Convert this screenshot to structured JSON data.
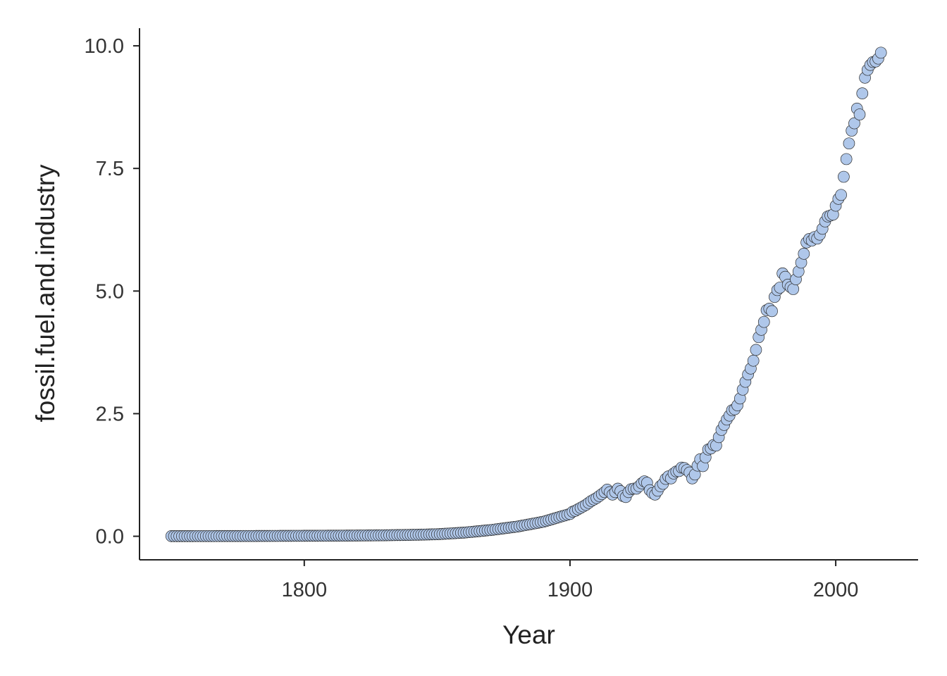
{
  "chart_data": {
    "type": "scatter",
    "title": "",
    "xlabel": "Year",
    "ylabel": "fossil.fuel.and.industry",
    "xlim": [
      1738,
      2031
    ],
    "ylim": [
      -0.48,
      10.36
    ],
    "xticks": [
      1800,
      1900,
      2000
    ],
    "yticks": [
      0.0,
      2.5,
      5.0,
      7.5,
      10.0
    ],
    "xtick_labels": [
      "1800",
      "1900",
      "2000"
    ],
    "ytick_labels": [
      "0.0",
      "2.5",
      "5.0",
      "7.5",
      "10.0"
    ],
    "grid": false,
    "legend": "none",
    "point_color": "#afc7ea",
    "point_edge_color": "#2a2a2a",
    "series": [
      {
        "x": [
          1750,
          1751,
          1752,
          1753,
          1754,
          1755,
          1756,
          1757,
          1758,
          1759,
          1760,
          1761,
          1762,
          1763,
          1764,
          1765,
          1766,
          1767,
          1768,
          1769,
          1770,
          1771,
          1772,
          1773,
          1774,
          1775,
          1776,
          1777,
          1778,
          1779,
          1780,
          1781,
          1782,
          1783,
          1784,
          1785,
          1786,
          1787,
          1788,
          1789,
          1790,
          1791,
          1792,
          1793,
          1794,
          1795,
          1796,
          1797,
          1798,
          1799,
          1800,
          1801,
          1802,
          1803,
          1804,
          1805,
          1806,
          1807,
          1808,
          1809,
          1810,
          1811,
          1812,
          1813,
          1814,
          1815,
          1816,
          1817,
          1818,
          1819,
          1820,
          1821,
          1822,
          1823,
          1824,
          1825,
          1826,
          1827,
          1828,
          1829,
          1830,
          1831,
          1832,
          1833,
          1834,
          1835,
          1836,
          1837,
          1838,
          1839,
          1840,
          1841,
          1842,
          1843,
          1844,
          1845,
          1846,
          1847,
          1848,
          1849,
          1850,
          1851,
          1852,
          1853,
          1854,
          1855,
          1856,
          1857,
          1858,
          1859,
          1860,
          1861,
          1862,
          1863,
          1864,
          1865,
          1866,
          1867,
          1868,
          1869,
          1870,
          1871,
          1872,
          1873,
          1874,
          1875,
          1876,
          1877,
          1878,
          1879,
          1880,
          1881,
          1882,
          1883,
          1884,
          1885,
          1886,
          1887,
          1888,
          1889,
          1890,
          1891,
          1892,
          1893,
          1894,
          1895,
          1896,
          1897,
          1898,
          1899,
          1900,
          1901,
          1902,
          1903,
          1904,
          1905,
          1906,
          1907,
          1908,
          1909,
          1910,
          1911,
          1912,
          1913,
          1914,
          1915,
          1916,
          1917,
          1918,
          1919,
          1920,
          1921,
          1922,
          1923,
          1924,
          1925,
          1926,
          1927,
          1928,
          1929,
          1930,
          1931,
          1932,
          1933,
          1934,
          1935,
          1936,
          1937,
          1938,
          1939,
          1940,
          1941,
          1942,
          1943,
          1944,
          1945,
          1946,
          1947,
          1948,
          1949,
          1950,
          1951,
          1952,
          1953,
          1954,
          1955,
          1956,
          1957,
          1958,
          1959,
          1960,
          1961,
          1962,
          1963,
          1964,
          1965,
          1966,
          1967,
          1968,
          1969,
          1970,
          1971,
          1972,
          1973,
          1974,
          1975,
          1976,
          1977,
          1978,
          1979,
          1980,
          1981,
          1982,
          1983,
          1984,
          1985,
          1986,
          1987,
          1988,
          1989,
          1990,
          1991,
          1992,
          1993,
          1994,
          1995,
          1996,
          1997,
          1998,
          1999,
          2000,
          2001,
          2002,
          2003,
          2004,
          2005,
          2006,
          2007,
          2008,
          2009,
          2010,
          2011,
          2012,
          2013,
          2014,
          2015,
          2016,
          2017
        ],
        "y": [
          0.003,
          0.003,
          0.003,
          0.003,
          0.003,
          0.003,
          0.0031,
          0.0032,
          0.0033,
          0.0034,
          0.0035,
          0.0035,
          0.0036,
          0.0037,
          0.0038,
          0.0039,
          0.004,
          0.0041,
          0.0042,
          0.0043,
          0.0044,
          0.0045,
          0.0046,
          0.0047,
          0.0048,
          0.0049,
          0.005,
          0.0051,
          0.0052,
          0.0053,
          0.0055,
          0.0057,
          0.0059,
          0.0061,
          0.0063,
          0.0065,
          0.0067,
          0.0069,
          0.0071,
          0.0073,
          0.0075,
          0.0077,
          0.0079,
          0.0081,
          0.0083,
          0.0085,
          0.0087,
          0.0089,
          0.0091,
          0.0093,
          0.0095,
          0.0097,
          0.0099,
          0.0101,
          0.0103,
          0.0105,
          0.0107,
          0.0109,
          0.0111,
          0.0113,
          0.0115,
          0.0117,
          0.0119,
          0.0121,
          0.0123,
          0.0125,
          0.013,
          0.0135,
          0.014,
          0.0145,
          0.015,
          0.0155,
          0.016,
          0.0165,
          0.017,
          0.0175,
          0.018,
          0.0185,
          0.019,
          0.0195,
          0.02,
          0.0208,
          0.0216,
          0.0224,
          0.0232,
          0.024,
          0.0248,
          0.0256,
          0.0264,
          0.0272,
          0.028,
          0.0293,
          0.0306,
          0.0319,
          0.0332,
          0.0345,
          0.0358,
          0.0371,
          0.0384,
          0.0397,
          0.041,
          0.0443,
          0.0476,
          0.0509,
          0.0542,
          0.0575,
          0.0608,
          0.0641,
          0.0674,
          0.0707,
          0.074,
          0.0792,
          0.0844,
          0.0896,
          0.0948,
          0.1,
          0.1052,
          0.1104,
          0.1156,
          0.1208,
          0.126,
          0.133,
          0.14,
          0.147,
          0.154,
          0.161,
          0.168,
          0.175,
          0.182,
          0.189,
          0.196,
          0.206,
          0.216,
          0.226,
          0.236,
          0.246,
          0.256,
          0.266,
          0.276,
          0.286,
          0.296,
          0.312,
          0.328,
          0.344,
          0.36,
          0.376,
          0.392,
          0.408,
          0.424,
          0.44,
          0.456,
          0.5,
          0.52,
          0.55,
          0.58,
          0.61,
          0.64,
          0.68,
          0.72,
          0.75,
          0.78,
          0.82,
          0.86,
          0.9,
          0.95,
          0.9,
          0.85,
          0.9,
          0.97,
          0.92,
          0.82,
          0.8,
          0.9,
          0.96,
          0.97,
          0.97,
          1.02,
          1.08,
          1.12,
          1.09,
          0.94,
          0.88,
          0.85,
          0.93,
          1.02,
          1.07,
          1.17,
          1.22,
          1.18,
          1.28,
          1.32,
          1.33,
          1.4,
          1.39,
          1.35,
          1.3,
          1.18,
          1.26,
          1.44,
          1.57,
          1.43,
          1.61,
          1.77,
          1.79,
          1.86,
          1.85,
          2.02,
          2.17,
          2.27,
          2.38,
          2.46,
          2.57,
          2.59,
          2.67,
          2.81,
          2.99,
          3.15,
          3.3,
          3.42,
          3.58,
          3.8,
          4.06,
          4.21,
          4.37,
          4.61,
          4.64,
          4.59,
          4.88,
          5.02,
          5.07,
          5.36,
          5.29,
          5.13,
          5.08,
          5.04,
          5.24,
          5.4,
          5.58,
          5.76,
          5.99,
          6.06,
          6.03,
          6.1,
          6.07,
          6.15,
          6.27,
          6.42,
          6.52,
          6.54,
          6.56,
          6.74,
          6.88,
          6.96,
          7.33,
          7.69,
          8.01,
          8.27,
          8.42,
          8.72,
          8.6,
          9.03,
          9.35,
          9.51,
          9.61,
          9.67,
          9.68,
          9.74,
          9.86
        ]
      }
    ]
  }
}
